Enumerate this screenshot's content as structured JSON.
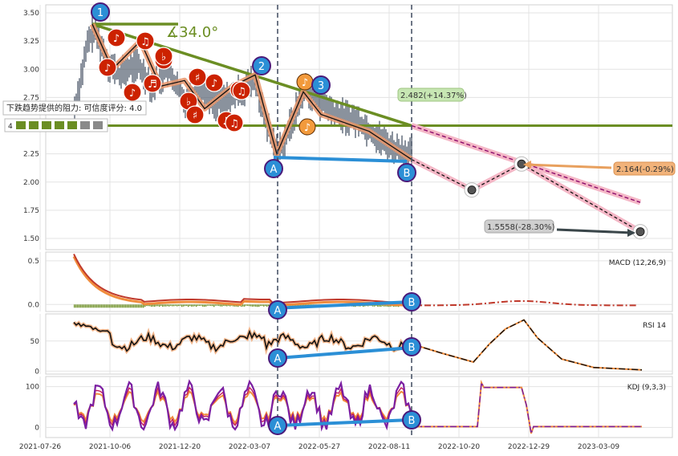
{
  "chart_data": [
    {
      "type": "line",
      "panel": "price",
      "ylim": [
        1.4,
        3.56
      ],
      "yticks": [
        3.5,
        3.25,
        3.0,
        2.75,
        2.5,
        2.25,
        2.0,
        1.75,
        1.5
      ],
      "xticks": [
        "2021-07-26",
        "2021-10-06",
        "2021-12-20",
        "2022-03-07",
        "2022-05-27",
        "2022-08-11",
        "2022-10-20",
        "2022-12-29",
        "2023-03-09"
      ],
      "angle_label": "∡34.0°",
      "resistance_label": "下跌趋势提供的阻力: 可信度评分: 4.0",
      "small_label": "4",
      "wave_labels": [
        "1",
        "2",
        "3",
        "A",
        "B"
      ],
      "annotations": [
        {
          "text": "2.482(+14.37%)",
          "color": "#c7e6b3"
        },
        {
          "text": "2.164(-0.29%)",
          "color": "#f2b37a"
        },
        {
          "text": "1.5558(-28.30%)",
          "color": "#cfcfcf"
        }
      ],
      "support_level": 2.5,
      "colors": {
        "trend": "#6b8e23",
        "zigzag": "#e8956b",
        "divergence": "#2b8fd6",
        "forecast_band": "#f4b7c6",
        "marker": "#cc2200"
      }
    },
    {
      "type": "line",
      "panel": "macd",
      "label": "MACD (12,26,9)",
      "ylim": [
        -0.08,
        0.6
      ],
      "yticks": [
        0.5,
        0.0
      ]
    },
    {
      "type": "line",
      "panel": "rsi",
      "label": "RSI 14",
      "ylim": [
        -5,
        95
      ],
      "yticks": [
        50,
        0
      ]
    },
    {
      "type": "line",
      "panel": "kdj",
      "label": "KDJ (9,3,3)",
      "ylim": [
        -25,
        125
      ],
      "yticks": [
        100,
        0
      ]
    }
  ]
}
